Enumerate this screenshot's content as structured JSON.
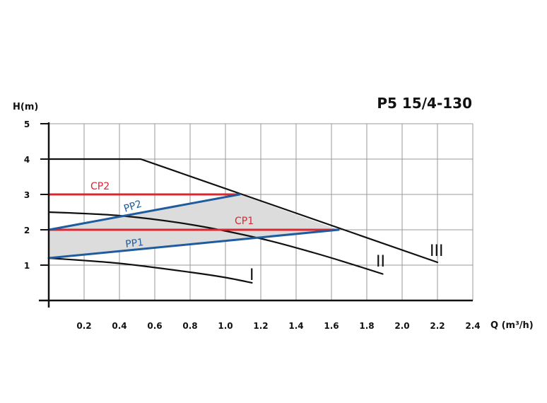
{
  "chart_data": {
    "type": "line",
    "title": "P5 15/4-130",
    "ylabel": "H(m)",
    "xlabel": "Q (m³/h)",
    "xlim": [
      0,
      2.4
    ],
    "ylim": [
      0,
      5
    ],
    "x_ticks": [
      "0.2",
      "0.4",
      "0.6",
      "0.8",
      "1.0",
      "1.2",
      "1.4",
      "1.6",
      "1.8",
      "2.0",
      "2.2",
      "2.4"
    ],
    "y_ticks": [
      "1",
      "2",
      "3",
      "4",
      "5"
    ],
    "grid": true,
    "colors": {
      "constant_pressure": "#d9282f",
      "proportional_pressure": "#1f5c9e",
      "fixed_speed": "#111111",
      "shaded_area": "#dcdcdc",
      "grid": "#9a9a9a"
    },
    "shaded_region": [
      [
        0,
        1.2
      ],
      [
        0,
        2.0
      ],
      [
        1.08,
        3.0
      ],
      [
        1.64,
        2.0
      ]
    ],
    "series": [
      {
        "name": "I",
        "kind": "fixed_speed",
        "x": [
          0,
          0.4,
          0.8,
          1.0,
          1.15
        ],
        "y": [
          1.2,
          1.05,
          0.8,
          0.65,
          0.5
        ]
      },
      {
        "name": "II",
        "kind": "fixed_speed",
        "x": [
          0,
          0.4,
          0.8,
          1.2,
          1.5,
          1.7,
          1.89
        ],
        "y": [
          2.5,
          2.4,
          2.15,
          1.75,
          1.35,
          1.05,
          0.75
        ]
      },
      {
        "name": "III",
        "kind": "fixed_speed",
        "x": [
          0,
          0.52,
          2.2
        ],
        "y": [
          4.0,
          4.0,
          1.08
        ]
      },
      {
        "name": "CP1",
        "kind": "constant_pressure",
        "x": [
          0,
          1.64
        ],
        "y": [
          2.0,
          2.0
        ]
      },
      {
        "name": "CP2",
        "kind": "constant_pressure",
        "x": [
          0,
          1.08
        ],
        "y": [
          3.0,
          3.0
        ]
      },
      {
        "name": "PP1",
        "kind": "proportional_pressure",
        "x": [
          0,
          1.64
        ],
        "y": [
          1.2,
          2.0
        ]
      },
      {
        "name": "PP2",
        "kind": "proportional_pressure",
        "x": [
          0,
          1.08
        ],
        "y": [
          2.0,
          3.0
        ]
      }
    ]
  }
}
